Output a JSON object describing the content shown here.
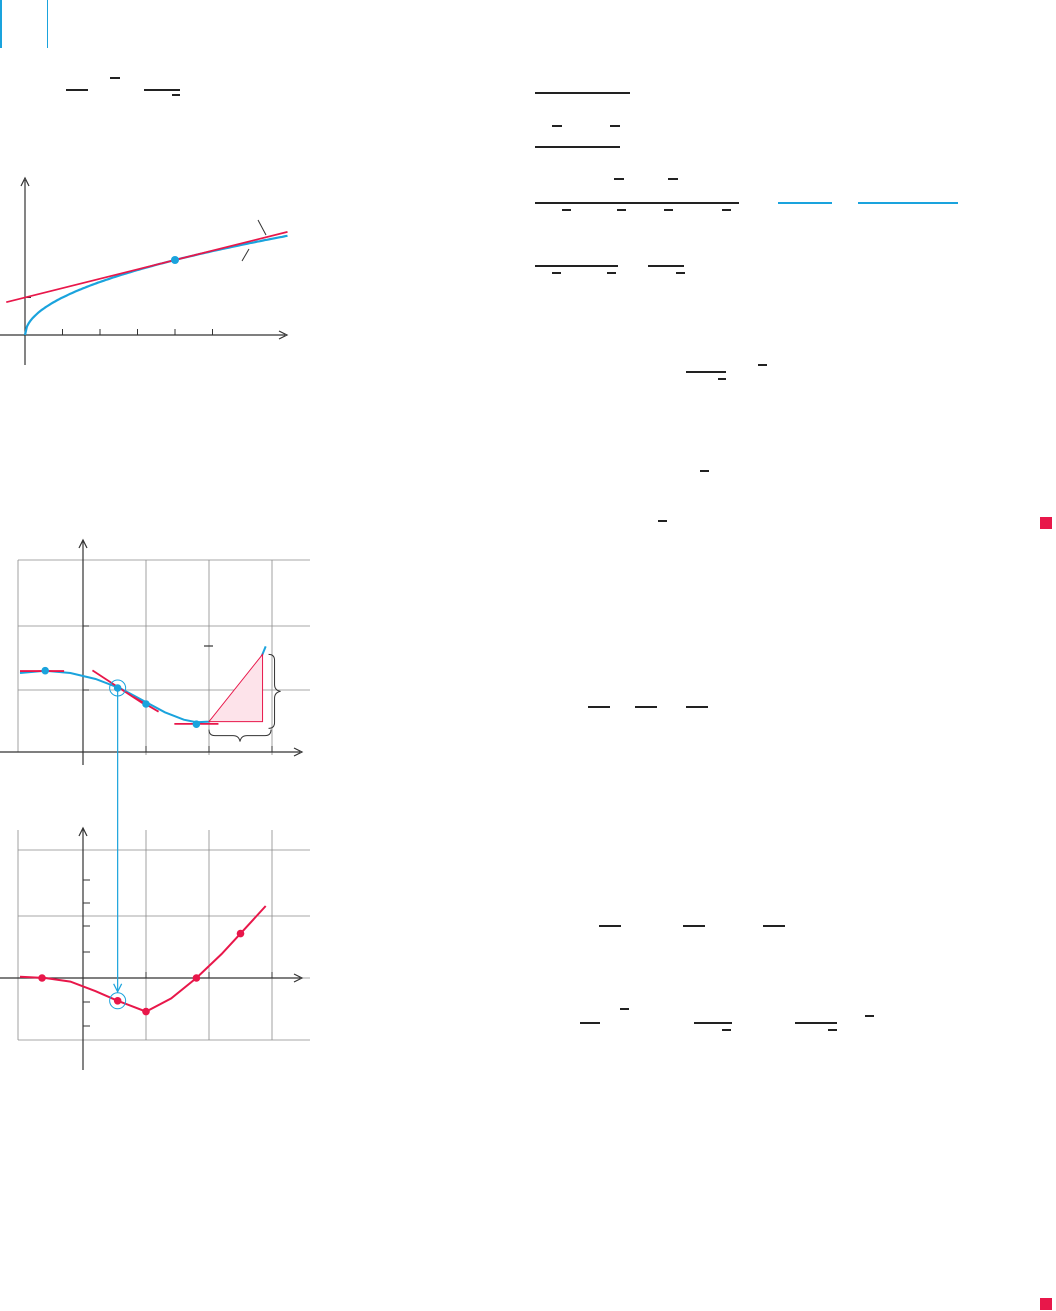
{
  "page": {
    "accent_blue": "#1aa3dd",
    "accent_red": "#e8174a",
    "axis_color": "#333333",
    "grid_color": "#8a8a8a"
  },
  "figure_top": {
    "curve": "blue",
    "tangent": "red",
    "point": "blue"
  },
  "figure_bottom": {
    "top_panel_curve": "blue",
    "bottom_panel_curve": "red",
    "connector": "blue"
  },
  "end_marks": {
    "color": "#e8174a",
    "count": 2
  },
  "chart_data": [
    {
      "type": "line",
      "title": "",
      "xlabel": "",
      "ylabel": "",
      "series": [
        {
          "x": [
            0,
            0.5,
            1,
            2,
            3,
            4,
            5,
            6,
            7
          ],
          "y": [
            0,
            0.707,
            1,
            1.414,
            1.732,
            2,
            2.236,
            2.449,
            2.646
          ]
        },
        {
          "x": [
            -0.5,
            7
          ],
          "y": [
            0.875,
            2.75
          ]
        }
      ],
      "points": [
        {
          "x": 4,
          "y": 2
        }
      ],
      "xlim": [
        -0.6,
        7.2
      ],
      "ylim": [
        -0.1,
        2.8
      ],
      "grid": false
    },
    {
      "type": "line",
      "title": "",
      "xlabel": "",
      "ylabel": "",
      "series": [
        {
          "x": [
            -1,
            -0.6,
            -0.2,
            0.2,
            0.6,
            1.0,
            1.3,
            1.6,
            1.8,
            2.0,
            2.2,
            2.4,
            2.6,
            2.8,
            2.9
          ],
          "y": [
            2.47,
            2.54,
            2.47,
            2.28,
            1.98,
            1.56,
            1.24,
            1.01,
            0.93,
            0.95,
            1.12,
            1.47,
            2.03,
            2.82,
            3.3
          ]
        }
      ],
      "points": [
        {
          "x": -0.6,
          "y": 2.54
        },
        {
          "x": 0.55,
          "y": 2.0
        },
        {
          "x": 1.0,
          "y": 1.5
        },
        {
          "x": 1.8,
          "y": 0.87
        },
        {
          "x": 2.5,
          "y": 1.5
        }
      ],
      "xlim": [
        -1.3,
        3.5
      ],
      "ylim": [
        -0.1,
        3.0
      ],
      "grid": true
    },
    {
      "type": "line",
      "title": "",
      "xlabel": "",
      "ylabel": "",
      "series": [
        {
          "x": [
            -1,
            -0.6,
            -0.2,
            0.2,
            0.55,
            1.0,
            1.4,
            1.8,
            2.2,
            2.5,
            2.9
          ],
          "y": [
            0.05,
            0.0,
            -0.15,
            -0.55,
            -0.95,
            -1.4,
            -0.85,
            0.0,
            1.0,
            1.85,
            3.0
          ]
        }
      ],
      "points": [
        {
          "x": -0.65,
          "y": 0.0
        },
        {
          "x": 0.55,
          "y": -0.95
        },
        {
          "x": 1.0,
          "y": -1.4
        },
        {
          "x": 1.8,
          "y": 0.0
        },
        {
          "x": 2.5,
          "y": 1.85
        }
      ],
      "xlim": [
        -1.3,
        3.5
      ],
      "ylim": [
        -2.4,
        5.8
      ],
      "grid": true
    }
  ]
}
